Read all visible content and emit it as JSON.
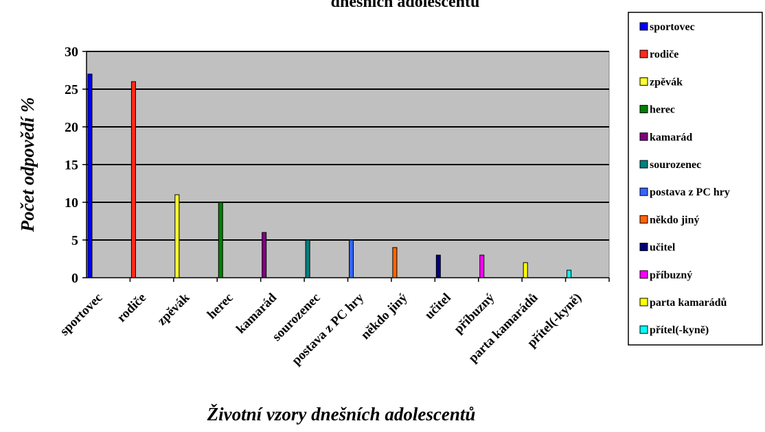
{
  "chart_data": {
    "type": "bar",
    "title": "dnešních adolescentů",
    "xlabel": "Životní vzory dnešních adolescentů",
    "ylabel": "Počet odpovědí %",
    "ylim": [
      0,
      30
    ],
    "yticks": [
      0,
      5,
      10,
      15,
      20,
      25,
      30
    ],
    "grid": true,
    "legend_position": "right",
    "plot_background": "#c0c0c0",
    "categories": [
      "sportovec",
      "rodiče",
      "zpěvák",
      "herec",
      "kamarád",
      "sourozenec",
      "postava z PC hry",
      "někdo jiný",
      "učitel",
      "příbuzný",
      "parta kamarádů",
      "přítel(-kyně)"
    ],
    "values": [
      27,
      26,
      11,
      10,
      6,
      5,
      5,
      4,
      3,
      3,
      2,
      1
    ],
    "colors": [
      "#0000ff",
      "#ff2a1a",
      "#ffff33",
      "#008000",
      "#800080",
      "#008080",
      "#3366ff",
      "#ff6600",
      "#000080",
      "#ff00ff",
      "#ffff00",
      "#00ffff"
    ],
    "legend": [
      "sportovec",
      "rodiče",
      "zpěvák",
      "herec",
      "kamarád",
      "sourozenec",
      "postava z PC hry",
      "někdo jiný",
      "učitel",
      "příbuzný",
      "parta kamarádů",
      "přítel(-kyně)"
    ]
  }
}
